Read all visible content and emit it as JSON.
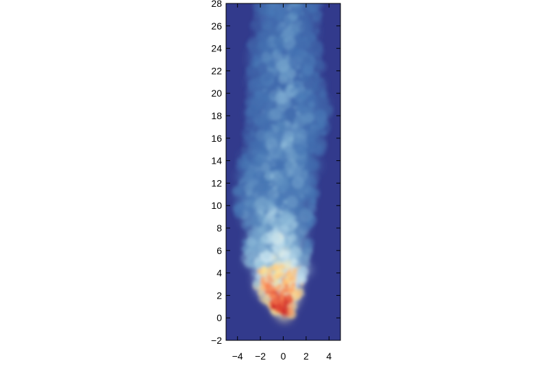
{
  "chart_data": {
    "type": "heatmap",
    "title": "",
    "xlabel": "",
    "ylabel": "",
    "xlim": [
      -5,
      5
    ],
    "ylim": [
      -2,
      28
    ],
    "x_ticks": [
      -4,
      -2,
      0,
      2,
      4
    ],
    "x_tick_labels": [
      "−4",
      "−2",
      "0",
      "2",
      "4"
    ],
    "y_ticks": [
      -2,
      0,
      2,
      4,
      6,
      8,
      10,
      12,
      14,
      16,
      18,
      20,
      22,
      24,
      26,
      28
    ],
    "y_tick_labels": [
      "−2",
      "0",
      "2",
      "4",
      "6",
      "8",
      "10",
      "12",
      "14",
      "16",
      "18",
      "20",
      "22",
      "24",
      "26",
      "28"
    ],
    "grid": false,
    "background_color": "#323a8c",
    "colormap": [
      "#323a8c",
      "#4575b4",
      "#91bfdb",
      "#e0f3f8",
      "#fee090",
      "#fc8d59",
      "#d73027",
      "#a50026"
    ],
    "plume_centerline": [
      {
        "y": 0.5,
        "x": 0.1,
        "halfwidth": 0.8,
        "level": 0.95
      },
      {
        "y": 2,
        "x": -0.2,
        "halfwidth": 2.0,
        "level": 0.85
      },
      {
        "y": 4,
        "x": -0.3,
        "halfwidth": 2.6,
        "level": 0.65
      },
      {
        "y": 6,
        "x": -0.6,
        "halfwidth": 3.0,
        "level": 0.45
      },
      {
        "y": 8,
        "x": -0.5,
        "halfwidth": 3.2,
        "level": 0.35
      },
      {
        "y": 10,
        "x": -0.8,
        "halfwidth": 3.6,
        "level": 0.3
      },
      {
        "y": 12,
        "x": -0.6,
        "halfwidth": 3.8,
        "level": 0.28
      },
      {
        "y": 14,
        "x": -0.4,
        "halfwidth": 3.6,
        "level": 0.26
      },
      {
        "y": 16,
        "x": 0.2,
        "halfwidth": 3.6,
        "level": 0.25
      },
      {
        "y": 18,
        "x": 0.5,
        "halfwidth": 3.8,
        "level": 0.24
      },
      {
        "y": 20,
        "x": 0.4,
        "halfwidth": 3.6,
        "level": 0.23
      },
      {
        "y": 22,
        "x": 0.2,
        "halfwidth": 3.4,
        "level": 0.22
      },
      {
        "y": 24,
        "x": 0.0,
        "halfwidth": 3.2,
        "level": 0.21
      },
      {
        "y": 26,
        "x": 0.3,
        "halfwidth": 3.0,
        "level": 0.2
      },
      {
        "y": 28,
        "x": 0.5,
        "halfwidth": 2.8,
        "level": 0.2
      }
    ]
  }
}
